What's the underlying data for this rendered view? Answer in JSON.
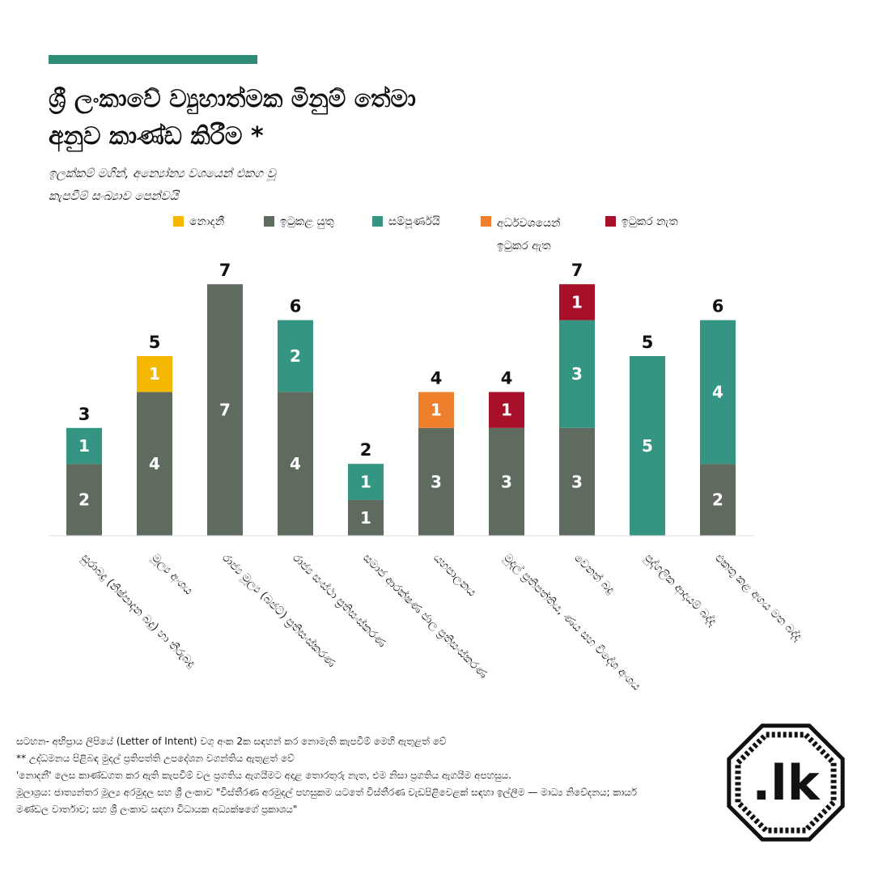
{
  "header": {
    "accent_color": "#2e8b76",
    "title_lines": [
      "ශ්‍රී ලංකාවේ ව්‍යුහාත්මක මිනුම් තේමා",
      "අනුව කාණ්ඩ කිරීම *"
    ],
    "subtitle_lines": [
      "ඉලක්කම් මගින්, අන්‍යෝන්‍ය වශයෙන් එකග වූ",
      "කැපවීම් සංඛ්‍යාව පෙන්වයි"
    ]
  },
  "legend": {
    "items": [
      {
        "label": "නොදනී",
        "color": "#f5b800"
      },
      {
        "label": "ඉටුකළ යුතු",
        "color": "#5f6b5e"
      },
      {
        "label": "සම්පූර්ණයි",
        "color": "#339582"
      },
      {
        "label": "අර්ධවශයෙන් ඉටුකර ඇත",
        "color": "#ee7f2d"
      },
      {
        "label": "ඉටුකර නැත",
        "color": "#a8102a"
      }
    ]
  },
  "chart_data": {
    "type": "bar",
    "stacked": true,
    "categories": [
      "සුරාබදු (නිෂ්පාදන බදු) හා තීරුබදු",
      "මූල්‍ය අංශය",
      "රාජ්‍ය මූල්‍ය (බජට්) ප්‍රතිසංස්කරණ",
      "රාජ්‍ය සංස්ථා ප්‍රතිසංස්කරණ",
      "සමාජ ආරක්ෂණ ජාල ප්‍රතිසංස්කරණ",
      "යහපාලනය",
      "මුදල් ප්‍රතිපත්තිය, ණය සහ විදේශ අංශය",
      "වෙනත් බදු",
      "පුද්ගලික ආදායම් බද්ද",
      "එකතු කළ අගය මත බද්ද"
    ],
    "series": [
      {
        "name": "ඉටුකළ යුතු",
        "color": "#5f6b5e",
        "values": [
          2,
          4,
          7,
          4,
          1,
          3,
          3,
          3,
          0,
          2
        ]
      },
      {
        "name": "සම්පූර්ණයි",
        "color": "#339582",
        "values": [
          1,
          0,
          0,
          2,
          1,
          0,
          0,
          3,
          5,
          4
        ]
      },
      {
        "name": "නොදනී",
        "color": "#f5b800",
        "values": [
          0,
          1,
          0,
          0,
          0,
          0,
          0,
          0,
          0,
          0
        ]
      },
      {
        "name": "අර්ධවශයෙන් ඉටුකර ඇත",
        "color": "#ee7f2d",
        "values": [
          0,
          0,
          0,
          0,
          0,
          1,
          0,
          0,
          0,
          0
        ]
      },
      {
        "name": "ඉටුකර නැත",
        "color": "#a8102a",
        "values": [
          0,
          0,
          0,
          0,
          0,
          0,
          1,
          1,
          0,
          0
        ]
      }
    ],
    "totals": [
      3,
      5,
      7,
      6,
      2,
      4,
      4,
      7,
      5,
      6
    ],
    "ylim": [
      0,
      7
    ],
    "grid": false,
    "legend_position": "top"
  },
  "notes": {
    "lines": [
      "සටහන- අභිප්‍රාය ලිපියේ (Letter of Intent) වගු අංක 2ක සඳහන් කර නොමැති කැපවීම් මෙහි ඇතුළත් වේ",
      "** උද්ධමනය පිළිබඳ මුදල් ප්‍රතිපත්ති උපදේශන වගන්තිය ඇතුළත් වේ",
      "'නොදනී' ලෙස කාණ්ඩගත කර ඇති කැපවීම් වල ප්‍රගතිය ඇගයීමට අදාළ තොරතුරු නැත, එම නිසා ප්‍රගතිය ඇගයීම අපහසුය.",
      "මූලාශ්‍රය: ජාත්‍යන්තර මූල්‍ය අරමුදල සහ ශ්‍රී ලංකාව \"විස්තීරණ අරමුදල් පහසුකම යටතේ විස්තීරණ වැඩපිළිවෙළක් සඳහා ඉල්ලීම — මාධ්‍ය නිවේදනය; කාර්ය මණ්ඩල වාර්තාව; සහ ශ්‍රී ලංකාව සඳහා විධායක අධ්‍යක්ෂගේ ප්‍රකාශය\""
    ]
  },
  "logo": {
    "text": ".lk",
    "color": "#111111"
  }
}
